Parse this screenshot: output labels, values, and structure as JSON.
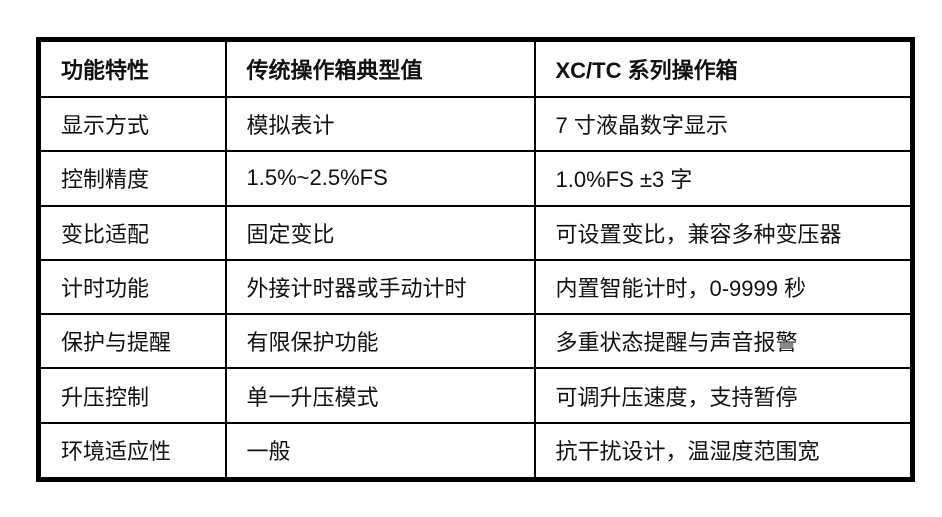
{
  "table": {
    "headers": [
      "功能特性",
      "传统操作箱典型值",
      "XC/TC 系列操作箱"
    ],
    "rows": [
      [
        "显示方式",
        "模拟表计",
        "7 寸液晶数字显示"
      ],
      [
        "控制精度",
        "1.5%~2.5%FS",
        "1.0%FS ±3 字"
      ],
      [
        "变比适配",
        "固定变比",
        "可设置变比，兼容多种变压器"
      ],
      [
        "计时功能",
        "外接计时器或手动计时",
        "内置智能计时，0-9999 秒"
      ],
      [
        "保护与提醒",
        "有限保护功能",
        "多重状态提醒与声音报警"
      ],
      [
        "升压控制",
        "单一升压模式",
        "可调升压速度，支持暂停"
      ],
      [
        "环境适应性",
        "一般",
        "抗干扰设计，温湿度范围宽"
      ]
    ]
  }
}
